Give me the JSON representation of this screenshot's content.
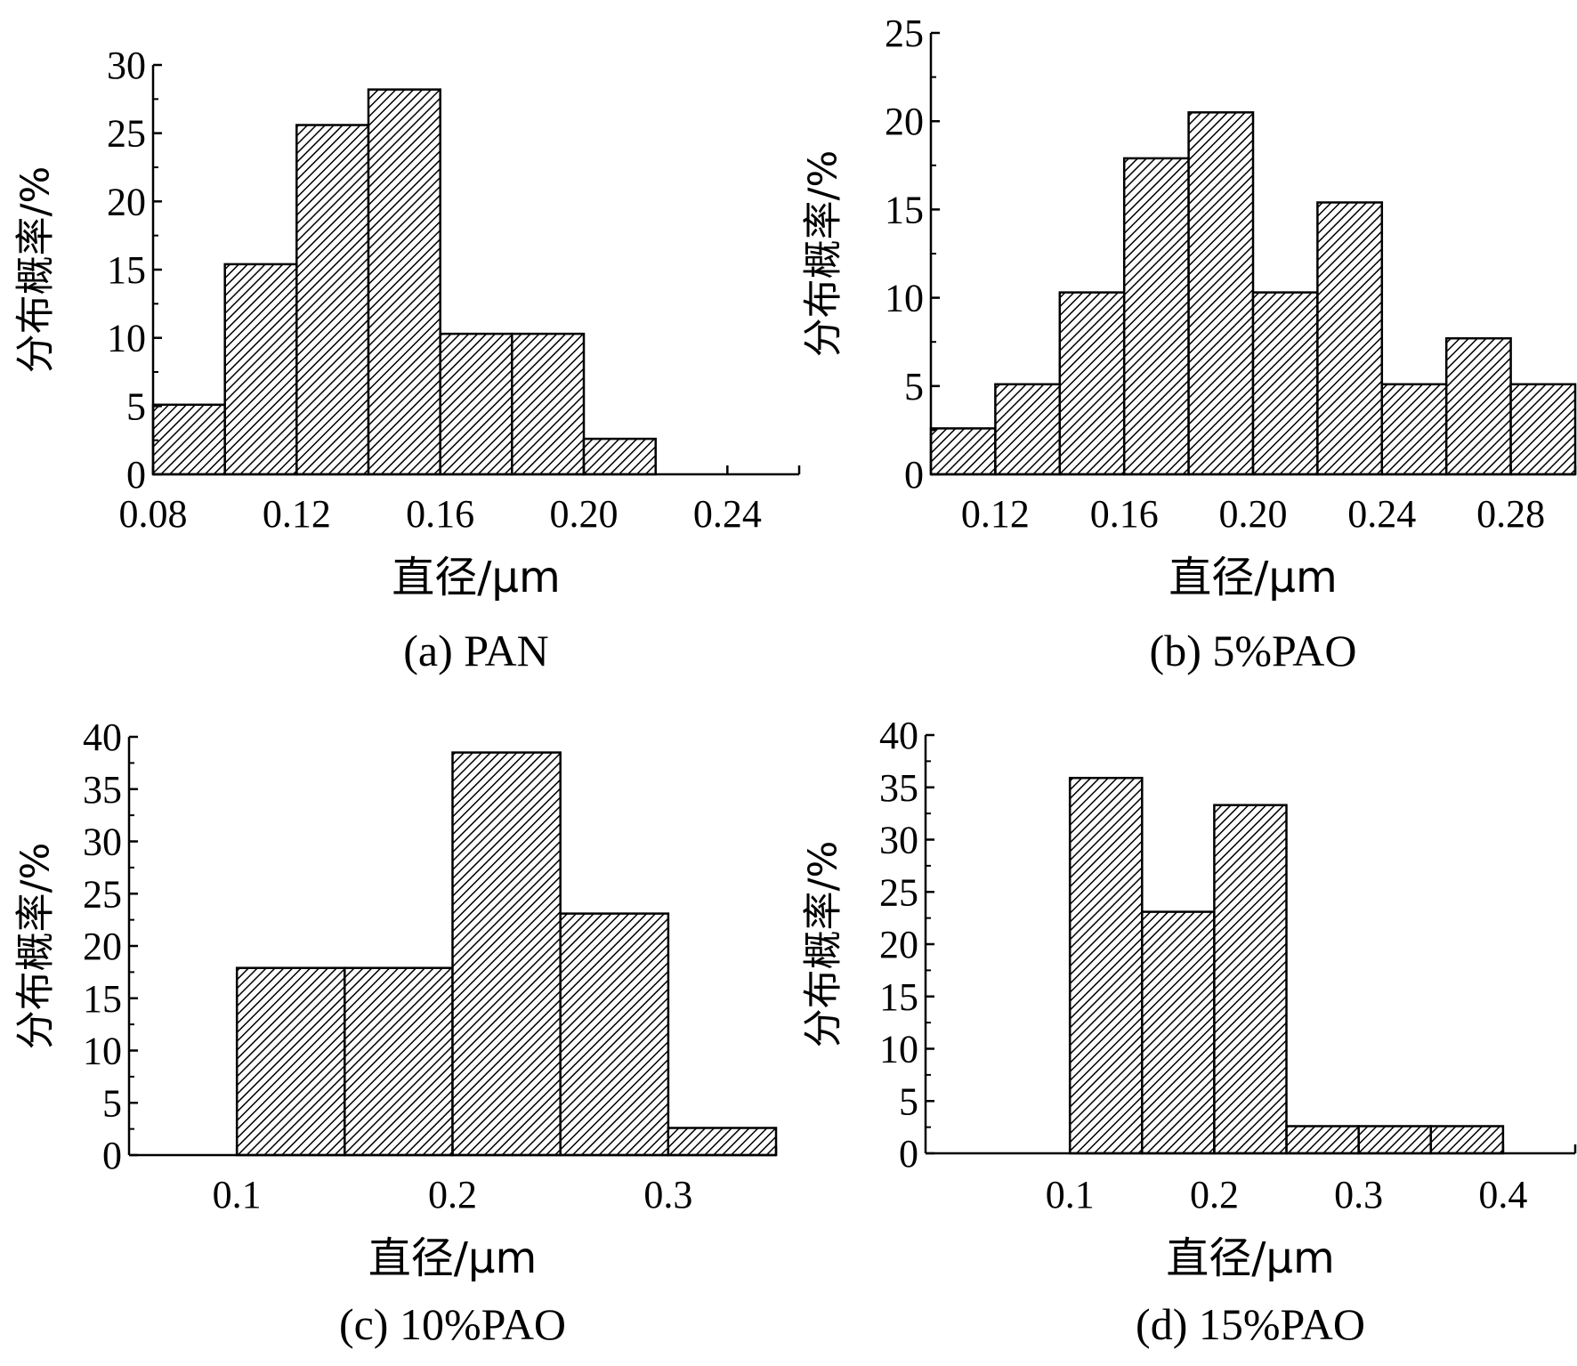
{
  "figure": {
    "x_axis_label": "直径/μm",
    "y_axis_label": "分布概率/%"
  },
  "chart_data": [
    {
      "type": "bar",
      "caption": "(a) PAN",
      "xlabel": "直径/μm",
      "ylabel": "分布概率/%",
      "xlim": [
        0.08,
        0.26
      ],
      "ylim": [
        0,
        30
      ],
      "x_ticks": [
        0.08,
        0.12,
        0.16,
        0.2,
        0.24
      ],
      "x_tick_labels": [
        "0.08",
        "0.12",
        "0.16",
        "0.20",
        "0.24"
      ],
      "y_ticks": [
        0,
        5,
        10,
        15,
        20,
        25,
        30
      ],
      "y_tick_labels": [
        "0",
        "5",
        "10",
        "15",
        "20",
        "25",
        "30"
      ],
      "bin_width": 0.02,
      "bins": [
        0.08,
        0.1,
        0.12,
        0.14,
        0.16,
        0.18,
        0.2
      ],
      "values": [
        5.1,
        15.4,
        25.6,
        28.2,
        10.3,
        10.3,
        2.6
      ]
    },
    {
      "type": "bar",
      "caption": "(b) 5%PAO",
      "xlabel": "直径/μm",
      "ylabel": "分布概率/%",
      "xlim": [
        0.1,
        0.3
      ],
      "ylim": [
        0,
        25
      ],
      "x_ticks": [
        0.12,
        0.16,
        0.2,
        0.24,
        0.28
      ],
      "x_tick_labels": [
        "0.12",
        "0.16",
        "0.20",
        "0.24",
        "0.28"
      ],
      "y_ticks": [
        0,
        5,
        10,
        15,
        20,
        25
      ],
      "y_tick_labels": [
        "0",
        "5",
        "10",
        "15",
        "20",
        "25"
      ],
      "bin_width": 0.02,
      "bins": [
        0.1,
        0.12,
        0.14,
        0.16,
        0.18,
        0.2,
        0.22,
        0.24,
        0.26,
        0.28
      ],
      "values": [
        2.6,
        5.1,
        10.3,
        17.9,
        20.5,
        10.3,
        15.4,
        5.1,
        7.7,
        5.1
      ]
    },
    {
      "type": "bar",
      "caption": "(c) 10%PAO",
      "xlabel": "直径/μm",
      "ylabel": "分布概率/%",
      "xlim": [
        0.05,
        0.35
      ],
      "ylim": [
        0,
        40
      ],
      "x_ticks": [
        0.1,
        0.2,
        0.3
      ],
      "x_tick_labels": [
        "0.1",
        "0.2",
        "0.3"
      ],
      "y_ticks": [
        0,
        5,
        10,
        15,
        20,
        25,
        30,
        35,
        40
      ],
      "y_tick_labels": [
        "0",
        "5",
        "10",
        "15",
        "20",
        "25",
        "30",
        "35",
        "40"
      ],
      "bin_width": 0.05,
      "bins": [
        0.1,
        0.15,
        0.2,
        0.25,
        0.3
      ],
      "values": [
        17.9,
        17.9,
        38.5,
        23.1,
        2.6
      ]
    },
    {
      "type": "bar",
      "caption": "(d) 15%PAO",
      "xlabel": "直径/μm",
      "ylabel": "分布概率/%",
      "xlim": [
        0.0,
        0.45
      ],
      "ylim": [
        0,
        40
      ],
      "x_ticks": [
        0.1,
        0.2,
        0.3,
        0.4
      ],
      "x_tick_labels": [
        "0.1",
        "0.2",
        "0.3",
        "0.4"
      ],
      "y_ticks": [
        0,
        5,
        10,
        15,
        20,
        25,
        30,
        35,
        40
      ],
      "y_tick_labels": [
        "0",
        "5",
        "10",
        "15",
        "20",
        "25",
        "30",
        "35",
        "40"
      ],
      "bin_width": 0.05,
      "bins": [
        0.1,
        0.15,
        0.2,
        0.25,
        0.3,
        0.35
      ],
      "values": [
        35.9,
        23.1,
        33.3,
        2.6,
        2.6,
        2.6
      ]
    }
  ]
}
